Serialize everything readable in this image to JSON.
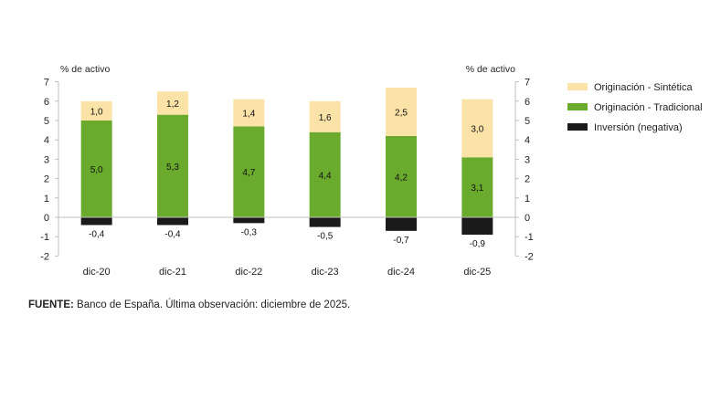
{
  "chart_data": {
    "type": "bar",
    "stacked": true,
    "categories": [
      "dic-20",
      "dic-21",
      "dic-22",
      "dic-23",
      "dic-24",
      "dic-25"
    ],
    "series": [
      {
        "name": "Originación - Tradicional",
        "values": [
          5.0,
          5.3,
          4.7,
          4.4,
          4.2,
          3.1
        ],
        "labels": [
          "5,0",
          "5,3",
          "4,7",
          "4,4",
          "4,2",
          "3,1"
        ],
        "color": "#6aab2e"
      },
      {
        "name": "Originación - Sintética",
        "values": [
          1.0,
          1.2,
          1.4,
          1.6,
          2.5,
          3.0
        ],
        "labels": [
          "1,0",
          "1,2",
          "1,4",
          "1,6",
          "2,5",
          "3,0"
        ],
        "color": "#fbe3a8"
      },
      {
        "name": "Inversión (negativa)",
        "values": [
          -0.4,
          -0.4,
          -0.3,
          -0.5,
          -0.7,
          -0.9
        ],
        "labels": [
          "-0,4",
          "-0,4",
          "-0,3",
          "-0,5",
          "-0,7",
          "-0,9"
        ],
        "color": "#1a1a1a"
      }
    ],
    "ylabel_left": "% de activo",
    "ylabel_right": "% de activo",
    "ylim": [
      -2,
      7
    ],
    "yticks": [
      7,
      6,
      5,
      4,
      3,
      2,
      1,
      0,
      -1,
      -2
    ],
    "legend_position": "right",
    "grid": false
  },
  "source": {
    "label": "FUENTE:",
    "text": " Banco de España. Última observación: diciembre de 2025."
  }
}
